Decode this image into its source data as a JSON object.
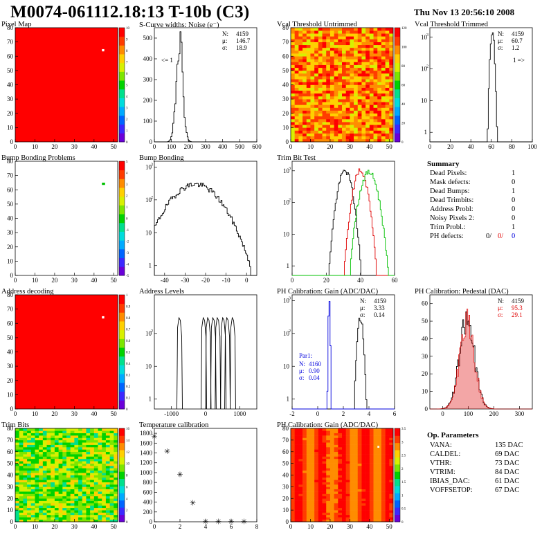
{
  "header": {
    "title": "M0074-061112.18:13 T-10b (C3)",
    "date": "Thu Nov 13 20:56:10 2008"
  },
  "colors": {
    "hist": "#000000",
    "red": "#e00000",
    "green": "#00c000",
    "blue": "#0000dd"
  },
  "panels": [
    {
      "id": "p1",
      "title": "Pixel Map",
      "kind": "map",
      "map": "pixelmap",
      "palette": "rainbow",
      "xlim": [
        0,
        52
      ],
      "ylim": [
        0,
        80
      ],
      "xticks": [
        0,
        10,
        20,
        30,
        40,
        50
      ],
      "yticks": [
        0,
        10,
        20,
        30,
        40,
        50,
        60,
        70,
        80
      ],
      "zticks": [
        "0",
        "1",
        "2",
        "3",
        "4",
        "5",
        "6",
        "7",
        "8",
        "9",
        "10"
      ],
      "spot": [
        44,
        64
      ]
    },
    {
      "id": "p2",
      "title": "S-Curve widths: Noise (e⁻)",
      "kind": "hist",
      "xlim": [
        0,
        600
      ],
      "ylim": [
        0,
        550
      ],
      "log": false,
      "xticks": [
        0,
        100,
        200,
        300,
        400,
        500,
        600
      ],
      "yticks": [
        0,
        100,
        200,
        300,
        400,
        500
      ],
      "series": [
        {
          "color": "hist",
          "mu": 147,
          "sigma": 19,
          "peak": 510
        }
      ],
      "stats": [
        [
          "N:",
          "4159"
        ],
        [
          "μ:",
          "146.7"
        ],
        [
          "σ:",
          "18.9"
        ]
      ],
      "label": "<= 1"
    },
    {
      "id": "p3",
      "title": "Vcal Threshold Untrimmed",
      "kind": "map",
      "map": "vcal",
      "palette": "rainbow",
      "xlim": [
        0,
        52
      ],
      "ylim": [
        0,
        80
      ],
      "xticks": [
        0,
        10,
        20,
        30,
        40,
        50
      ],
      "yticks": [
        0,
        10,
        20,
        30,
        40,
        50,
        60,
        70,
        80
      ],
      "zticks": [
        "0",
        "20",
        "40",
        "60",
        "80",
        "100",
        "120"
      ]
    },
    {
      "id": "p4",
      "title": "Vcal Threshold Trimmed",
      "kind": "hist",
      "xlim": [
        0,
        100
      ],
      "ylim": [
        0.5,
        2000
      ],
      "log": true,
      "xticks": [
        0,
        20,
        40,
        60,
        80,
        100
      ],
      "yticks": [
        1,
        10,
        100,
        1000
      ],
      "series": [
        {
          "color": "hist",
          "mu": 61,
          "sigma": 1.2,
          "peak": 1500
        }
      ],
      "stats": [
        [
          "N:",
          "4159"
        ],
        [
          "μ:",
          "60.7"
        ],
        [
          "σ:",
          "1.2"
        ]
      ],
      "label": "1 =>"
    },
    {
      "id": "p5",
      "title": "Bump Bonding Problems",
      "kind": "map",
      "map": "empty",
      "palette": "rainbow",
      "xlim": [
        0,
        52
      ],
      "ylim": [
        0,
        80
      ],
      "xticks": [
        0,
        10,
        20,
        30,
        40,
        50
      ],
      "yticks": [
        0,
        10,
        20,
        30,
        40,
        50,
        60,
        70,
        80
      ],
      "zticks": [
        "-5",
        "-4",
        "-3",
        "-2",
        "-1",
        "0",
        "1",
        "2",
        "3",
        "4",
        "5"
      ],
      "spot": [
        44,
        64
      ]
    },
    {
      "id": "p6",
      "title": "Bump Bonding",
      "kind": "hist",
      "xlim": [
        -45,
        5
      ],
      "ylim": [
        0.5,
        1500
      ],
      "log": true,
      "xticks": [
        -40,
        -30,
        -20,
        -10,
        0
      ],
      "yticks": [
        1,
        10,
        100,
        1000
      ],
      "series": [
        {
          "color": "hist",
          "mu": -25,
          "sigma": 8,
          "peak": 300
        }
      ]
    },
    {
      "id": "p7",
      "title": "Trim Bit Test",
      "kind": "hist",
      "xlim": [
        0,
        60
      ],
      "ylim": [
        0.5,
        2000
      ],
      "log": true,
      "xticks": [
        0,
        20,
        40,
        60
      ],
      "yticks": [
        1,
        10,
        100,
        1000
      ],
      "series": [
        {
          "color": "hist",
          "mu": 31,
          "sigma": 2.5,
          "peak": 1000
        },
        {
          "color": "red",
          "mu": 40,
          "sigma": 2.5,
          "peak": 1000
        },
        {
          "color": "green",
          "mu": 45,
          "sigma": 3,
          "peak": 900
        }
      ]
    },
    {
      "id": "p9",
      "title": "Address decoding",
      "kind": "map",
      "map": "pixelmap",
      "palette": "rainbow",
      "xlim": [
        0,
        52
      ],
      "ylim": [
        0,
        80
      ],
      "xticks": [
        0,
        10,
        20,
        30,
        40,
        50
      ],
      "yticks": [
        0,
        10,
        20,
        30,
        40,
        50,
        60,
        70,
        80
      ],
      "zticks": [
        "0",
        "0.1",
        "0.2",
        "0.3",
        "0.4",
        "0.5",
        "0.6",
        "0.7",
        "0.8",
        "0.9",
        "1"
      ],
      "spot": [
        44,
        64
      ]
    },
    {
      "id": "p10",
      "title": "Address Levels",
      "kind": "levels",
      "xlim": [
        -1500,
        1500
      ],
      "ylim": [
        0.5,
        1500
      ],
      "log": true,
      "xticks": [
        -1000,
        0,
        1000
      ],
      "yticks": [
        1,
        10,
        100
      ],
      "levels": [
        -760,
        -50,
        80,
        230,
        360,
        520,
        640,
        800
      ]
    },
    {
      "id": "p11",
      "title": "PH Calibration: Gain (ADC/DAC)",
      "kind": "hist",
      "xlim": [
        -2,
        6
      ],
      "ylim": [
        0.5,
        1500
      ],
      "log": true,
      "xticks": [
        -2,
        0,
        2,
        4,
        6
      ],
      "yticks": [
        1,
        10,
        100,
        1000
      ],
      "series": [
        {
          "color": "hist",
          "mu": 3.33,
          "sigma": 0.14,
          "peak": 300
        },
        {
          "color": "blue",
          "mu": 0.9,
          "sigma": 0.04,
          "peak": 900
        }
      ],
      "stats": [
        [
          "N:",
          "4159"
        ],
        [
          "μ:",
          "3.33"
        ],
        [
          "σ:",
          "0.14"
        ]
      ],
      "stats2": {
        "name": "Par1:",
        "rows": [
          [
            "N:",
            "4160"
          ],
          [
            "μ:",
            "0.90"
          ],
          [
            "σ:",
            "0.04"
          ]
        ]
      }
    },
    {
      "id": "p12",
      "title": "PH Calibration: Pedestal (DAC)",
      "kind": "hist",
      "xlim": [
        -50,
        350
      ],
      "ylim": [
        0,
        65
      ],
      "log": false,
      "xticks": [
        0,
        100,
        200,
        300
      ],
      "yticks": [
        0,
        10,
        20,
        30,
        40,
        50,
        60
      ],
      "series": [
        {
          "color": "hist",
          "mu": 95,
          "sigma": 29,
          "peak": 50
        },
        {
          "color": "red",
          "mu": 95.3,
          "sigma": 29.1,
          "peak": 48,
          "style": "hatch"
        }
      ],
      "stats": [
        [
          "N:",
          "4159"
        ],
        [
          "μ:",
          "95.3"
        ],
        [
          "σ:",
          "29.1"
        ]
      ],
      "statsColor": "red"
    },
    {
      "id": "p13",
      "title": "Trim Bits",
      "kind": "map",
      "map": "trim",
      "palette": "rainbow",
      "xlim": [
        0,
        52
      ],
      "ylim": [
        0,
        80
      ],
      "xticks": [
        0,
        10,
        20,
        30,
        40,
        50
      ],
      "yticks": [
        0,
        10,
        20,
        30,
        40,
        50,
        60,
        70,
        80
      ],
      "zticks": [
        "0",
        "2",
        "4",
        "6",
        "8",
        "10",
        "12",
        "14",
        "16"
      ]
    },
    {
      "id": "p14",
      "title": "Temperature calibration",
      "kind": "scatter",
      "xlim": [
        0,
        8
      ],
      "ylim": [
        0,
        1900
      ],
      "log": false,
      "xticks": [
        0,
        2,
        4,
        6,
        8
      ],
      "yticks": [
        0,
        200,
        400,
        600,
        800,
        1000,
        1200,
        1400,
        1600,
        1800
      ],
      "points": [
        [
          0,
          1750
        ],
        [
          1,
          1450
        ],
        [
          2,
          980
        ],
        [
          3,
          400
        ],
        [
          4,
          20
        ],
        [
          5,
          20
        ],
        [
          6,
          20
        ],
        [
          7,
          20
        ]
      ]
    },
    {
      "id": "p15",
      "title": "PH Calibration: Gain (ADC/DAC)",
      "kind": "map",
      "map": "gainmap",
      "palette": "rainbow",
      "xlim": [
        0,
        52
      ],
      "ylim": [
        0,
        80
      ],
      "xticks": [
        0,
        10,
        20,
        30,
        40,
        50
      ],
      "yticks": [
        0,
        10,
        20,
        30,
        40,
        50,
        60,
        70,
        80
      ],
      "zticks": [
        "0",
        "0.5",
        "1",
        "1.5",
        "2",
        "2.5",
        "3",
        "3.5"
      ]
    }
  ],
  "summary": {
    "title": "Summary",
    "rows": [
      {
        "label": "Dead Pixels:",
        "value": "1"
      },
      {
        "label": "Mask defects:",
        "value": "0"
      },
      {
        "label": "Dead Bumps:",
        "value": "1"
      },
      {
        "label": "Dead Trimbits:",
        "value": "0"
      },
      {
        "label": "Address Probl:",
        "value": "0"
      },
      {
        "label": "Noisy Pixels 2:",
        "value": "0"
      },
      {
        "label": "Trim Probl.:",
        "value": "1"
      }
    ],
    "ph": {
      "label": "PH defects:",
      "v1": "0/",
      "v2": "0/",
      "v3": "0"
    }
  },
  "params": {
    "title": "Op. Parameters",
    "rows": [
      {
        "label": "VANA:",
        "value": "135 DAC"
      },
      {
        "label": "CALDEL:",
        "value": "69 DAC"
      },
      {
        "label": "VTHR:",
        "value": "73 DAC"
      },
      {
        "label": "VTRIM:",
        "value": "84 DAC"
      },
      {
        "label": "IBIAS_DAC:",
        "value": "61 DAC"
      },
      {
        "label": "VOFFSETOP:",
        "value": "67 DAC"
      }
    ]
  }
}
